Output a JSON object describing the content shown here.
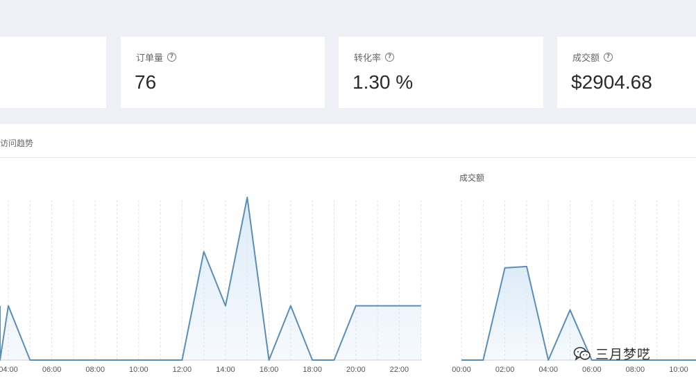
{
  "stats": [
    {
      "label": "",
      "value": ""
    },
    {
      "label": "订单量",
      "value": "76"
    },
    {
      "label": "转化率",
      "value": "1.30 %"
    },
    {
      "label": "成交额",
      "value": "$2904.68"
    }
  ],
  "help_icon": "question-circle-icon",
  "panel": {
    "title": "访问趋势"
  },
  "chart_data": [
    {
      "type": "area",
      "title": "",
      "xlabel": "",
      "ylabel": "",
      "x_tick_labels": [
        "04:00",
        "06:00",
        "08:00",
        "10:00",
        "12:00",
        "14:00",
        "16:00",
        "18:00",
        "20:00",
        "22:00"
      ],
      "x_hours": [
        2.7,
        3,
        4,
        5,
        6,
        7,
        8,
        9,
        10,
        11,
        12,
        13,
        14,
        15,
        16,
        17,
        18,
        19,
        20,
        21,
        22,
        23
      ],
      "values": [
        2,
        0,
        2,
        0,
        0,
        0,
        0,
        0,
        0,
        0,
        0,
        4,
        2,
        6,
        0,
        2,
        0,
        0,
        2,
        2,
        2,
        2
      ],
      "ylim": [
        0,
        6
      ],
      "grid": "vertical-dashed",
      "color": "#5b8db8",
      "fill_color": "#dbeaf8"
    },
    {
      "type": "area",
      "title": "成交额",
      "xlabel": "",
      "ylabel": "",
      "x_tick_labels": [
        "00:00",
        "02:00",
        "04:00",
        "06:00",
        "08:00",
        "10:00"
      ],
      "x_hours": [
        0,
        1,
        2,
        3,
        4,
        5,
        6,
        7,
        8,
        9,
        10,
        11
      ],
      "values": [
        0,
        0,
        3.4,
        3.45,
        0,
        1.85,
        0,
        0,
        0,
        0,
        0,
        0
      ],
      "ylim": [
        0,
        6
      ],
      "grid": "vertical-dashed",
      "color": "#5b8db8",
      "fill_color": "#dbeaf8"
    }
  ],
  "watermark": {
    "text": "三月梦呓",
    "icon": "wechat-logo-icon"
  }
}
